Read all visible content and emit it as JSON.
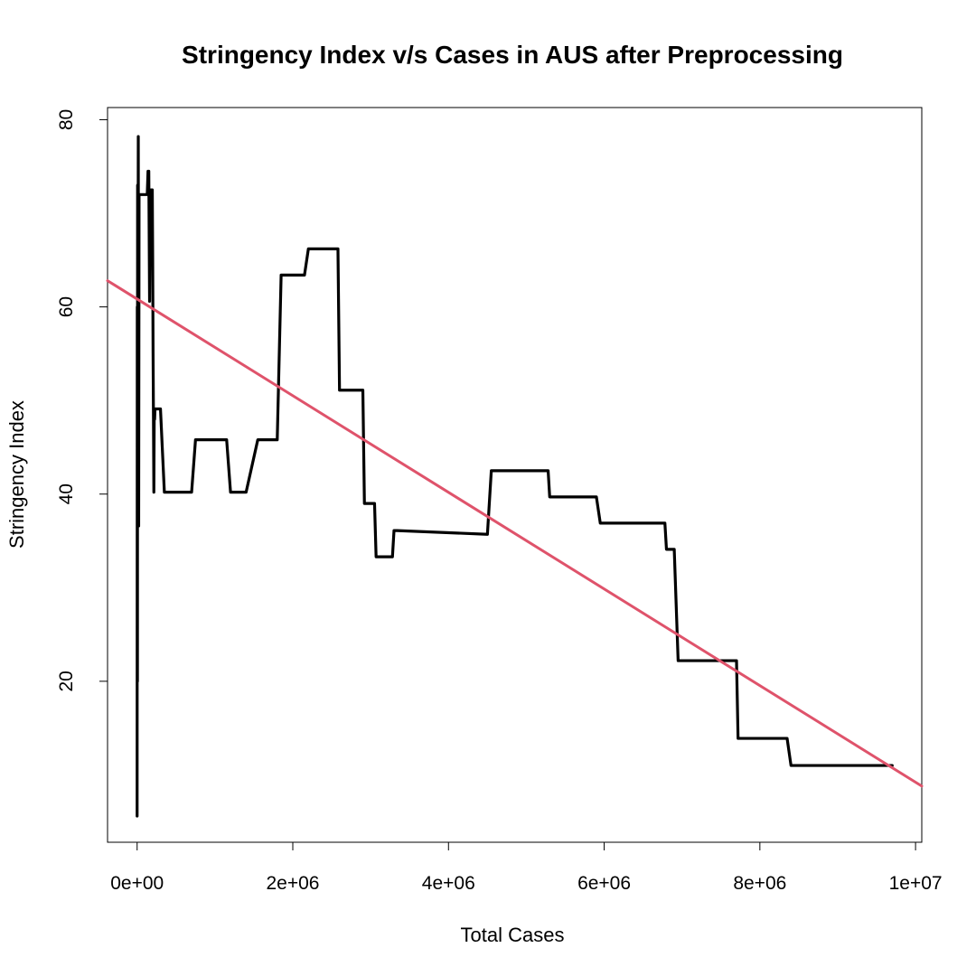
{
  "chart_data": {
    "type": "line",
    "title": "Stringency Index v/s Cases in AUS after Preprocessing",
    "xlabel": "Total Cases",
    "ylabel": "Stringency Index",
    "xlim": [
      -380000,
      10080000
    ],
    "ylim": [
      2.8,
      81.3
    ],
    "x_ticks": [
      0,
      2000000,
      4000000,
      6000000,
      8000000,
      10000000
    ],
    "x_tick_labels": [
      "0e+00",
      "2e+06",
      "4e+06",
      "6e+06",
      "8e+06",
      "1e+07"
    ],
    "y_ticks": [
      20,
      40,
      60,
      80
    ],
    "y_tick_labels": [
      "20",
      "40",
      "60",
      "80"
    ],
    "grid": false,
    "series": [
      {
        "color": "#000000",
        "x": [
          0,
          2000,
          4000,
          6000,
          8000,
          10000,
          15000,
          20000,
          25000,
          30000,
          35000,
          40000,
          45000,
          60000,
          80000,
          100000,
          120000,
          130000,
          140000,
          150000,
          160000,
          170000,
          180000,
          185000,
          190000,
          195000,
          200000,
          205000,
          210000,
          215000,
          220000,
          225000,
          230000,
          240000,
          250000,
          260000,
          300000,
          350000,
          400000,
          700000,
          750000,
          1150000,
          1200000,
          1400000,
          1550000,
          1800000,
          1850000,
          2150000,
          2200000,
          2580000,
          2600000,
          2900000,
          2920000,
          3050000,
          3070000,
          3280000,
          3300000,
          3340000,
          4500000,
          4550000,
          5280000,
          5300000,
          5900000,
          5950000,
          6780000,
          6800000,
          6900000,
          6950000,
          7700000,
          7720000,
          8350000,
          8400000,
          9700000
        ],
        "y": [
          5.6,
          60,
          20,
          73,
          45,
          50,
          78.2,
          36.6,
          72,
          72,
          72,
          72,
          72,
          72,
          72,
          72,
          72,
          72,
          74.5,
          74.5,
          60.6,
          72.5,
          65,
          72.5,
          72.5,
          72.5,
          65,
          55,
          48,
          40.2,
          49.1,
          48,
          49.1,
          49.1,
          49.1,
          49.1,
          49.1,
          40.2,
          40.2,
          40.2,
          45.8,
          45.8,
          40.2,
          40.2,
          45.8,
          45.8,
          63.4,
          63.4,
          66.2,
          66.2,
          51.1,
          51.1,
          39,
          39,
          33.3,
          33.3,
          36.1,
          36.1,
          35.7,
          42.5,
          42.5,
          39.7,
          39.7,
          36.9,
          36.9,
          34.1,
          34.1,
          22.2,
          22.2,
          13.9,
          13.9,
          11,
          11
        ]
      },
      {
        "color": "#DF536B",
        "type": "regression",
        "x": [
          -380000,
          10080000
        ],
        "y": [
          62.8,
          8.8
        ]
      }
    ]
  }
}
